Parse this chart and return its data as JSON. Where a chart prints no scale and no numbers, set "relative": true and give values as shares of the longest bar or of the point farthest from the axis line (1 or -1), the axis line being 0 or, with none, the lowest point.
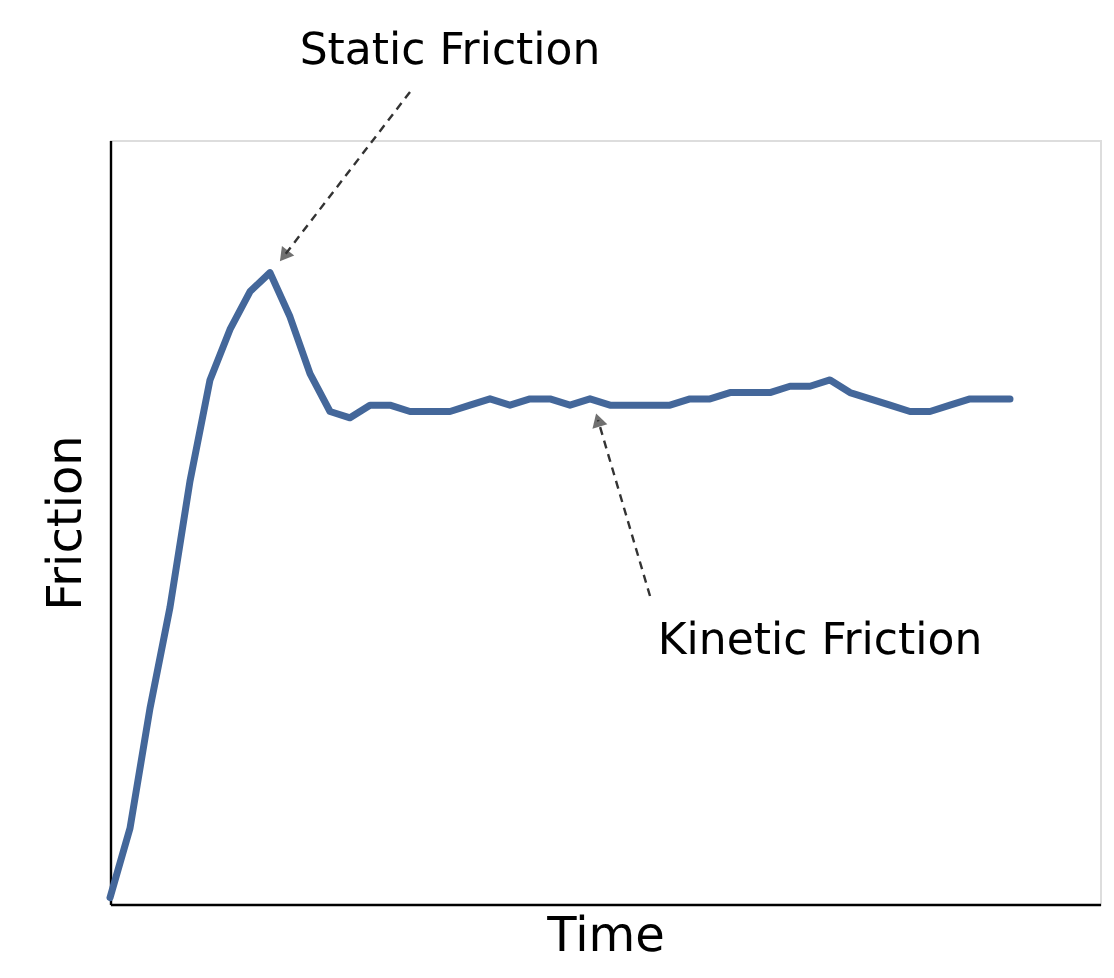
{
  "chart_data": {
    "type": "line",
    "relative": true,
    "xlabel": "Time",
    "ylabel": "Friction",
    "tick_labels": false,
    "color": "#44679a",
    "line_style": "solid",
    "marker": "none",
    "categories": [
      null,
      null,
      null,
      null,
      null,
      null,
      null,
      null,
      null,
      null,
      null,
      null,
      null,
      null,
      null,
      null,
      null,
      null,
      null,
      null,
      null,
      null,
      null,
      null,
      null,
      null,
      null,
      null,
      null,
      null,
      null,
      null,
      null,
      null,
      null,
      null,
      null,
      null,
      null,
      null,
      null,
      null,
      null,
      null,
      null,
      null,
      null,
      null,
      null,
      null
    ],
    "values": [
      0.01,
      0.12,
      0.31,
      0.47,
      0.67,
      0.83,
      0.91,
      0.97,
      1.0,
      0.93,
      0.84,
      0.78,
      0.77,
      0.79,
      0.79,
      0.78,
      0.78,
      0.78,
      0.79,
      0.8,
      0.79,
      0.8,
      0.8,
      0.79,
      0.8,
      0.79,
      0.79,
      0.79,
      0.79,
      0.8,
      0.8,
      0.81,
      0.81,
      0.81,
      0.82,
      0.82,
      0.83,
      0.81,
      0.8,
      0.79,
      0.78,
      0.78,
      0.79,
      0.8,
      0.8,
      0.8,
      null,
      null,
      null,
      null
    ],
    "annotations": [
      "Static Friction",
      "Kinetic Friction"
    ]
  }
}
